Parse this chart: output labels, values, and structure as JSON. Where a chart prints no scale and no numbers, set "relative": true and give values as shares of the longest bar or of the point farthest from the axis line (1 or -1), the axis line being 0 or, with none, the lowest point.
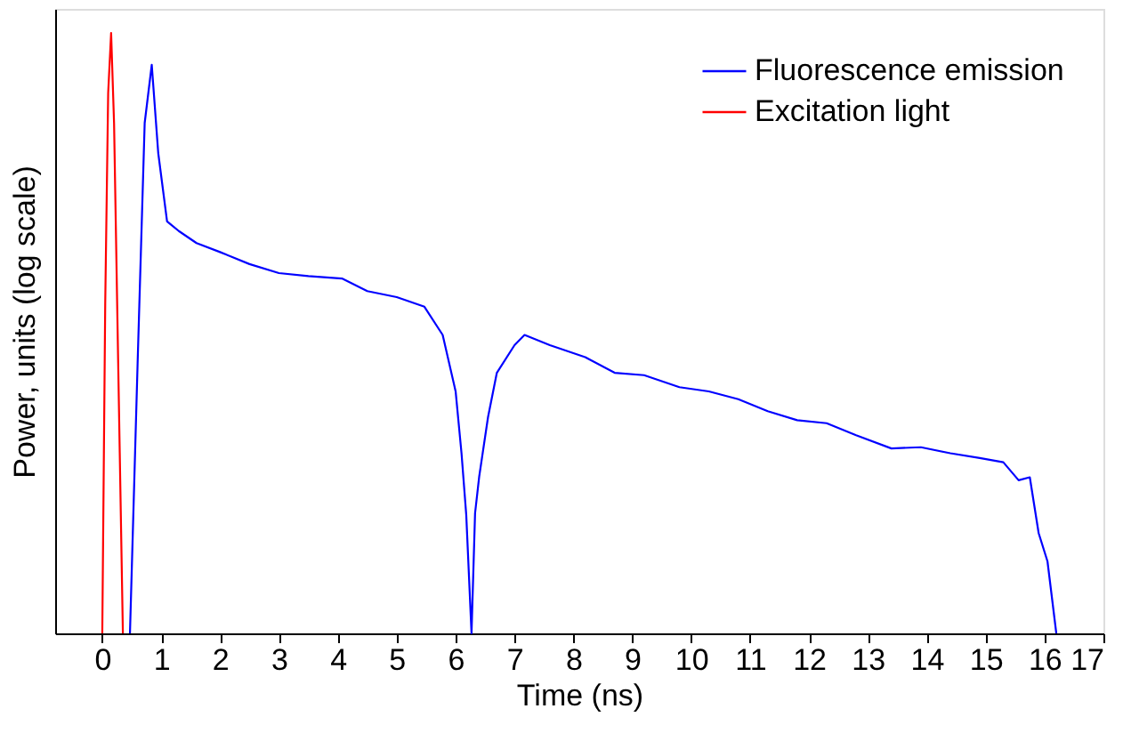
{
  "chart_data": {
    "type": "line",
    "relative": true,
    "xlabel": "Time (ns)",
    "ylabel": "Power, units (log scale)",
    "xlim": [
      -0.8,
      17
    ],
    "xticks": [
      0,
      1,
      2,
      3,
      4,
      5,
      6,
      7,
      8,
      9,
      10,
      11,
      12,
      13,
      14,
      15,
      16,
      17
    ],
    "grid": false,
    "legend": "top right",
    "line_style": "solid",
    "marker": "none",
    "series": [
      {
        "name": "Fluorescence emission",
        "color": "#0000ff",
        "x": [
          0.47,
          0.6,
          0.72,
          0.84,
          0.95,
          1.1,
          1.3,
          1.6,
          2.0,
          2.5,
          3.0,
          3.5,
          4.07,
          4.5,
          5.0,
          5.47,
          5.78,
          6.0,
          6.1,
          6.18,
          6.27,
          6.33,
          6.4,
          6.55,
          6.7,
          7.0,
          7.17,
          7.6,
          8.2,
          8.7,
          9.2,
          9.8,
          10.3,
          10.8,
          11.3,
          11.8,
          12.3,
          12.8,
          13.4,
          13.9,
          14.4,
          14.9,
          15.3,
          15.56,
          15.75,
          15.9,
          16.05,
          16.2
        ],
        "values": [
          0,
          0.45,
          0.85,
          0.947,
          0.8,
          0.686,
          0.67,
          0.65,
          0.635,
          0.615,
          0.6,
          0.595,
          0.591,
          0.57,
          0.56,
          0.544,
          0.497,
          0.403,
          0.3,
          0.198,
          0,
          0.2,
          0.261,
          0.36,
          0.434,
          0.48,
          0.497,
          0.48,
          0.46,
          0.434,
          0.43,
          0.41,
          0.403,
          0.39,
          0.37,
          0.355,
          0.35,
          0.33,
          0.308,
          0.31,
          0.3,
          0.292,
          0.285,
          0.255,
          0.26,
          0.167,
          0.12,
          0
        ]
      },
      {
        "name": "Excitation light",
        "color": "#ff0000",
        "x": [
          0.0,
          0.05,
          0.1,
          0.15,
          0.2,
          0.27,
          0.35
        ],
        "values": [
          0,
          0.55,
          0.9,
          1,
          0.85,
          0.45,
          0
        ]
      }
    ]
  }
}
